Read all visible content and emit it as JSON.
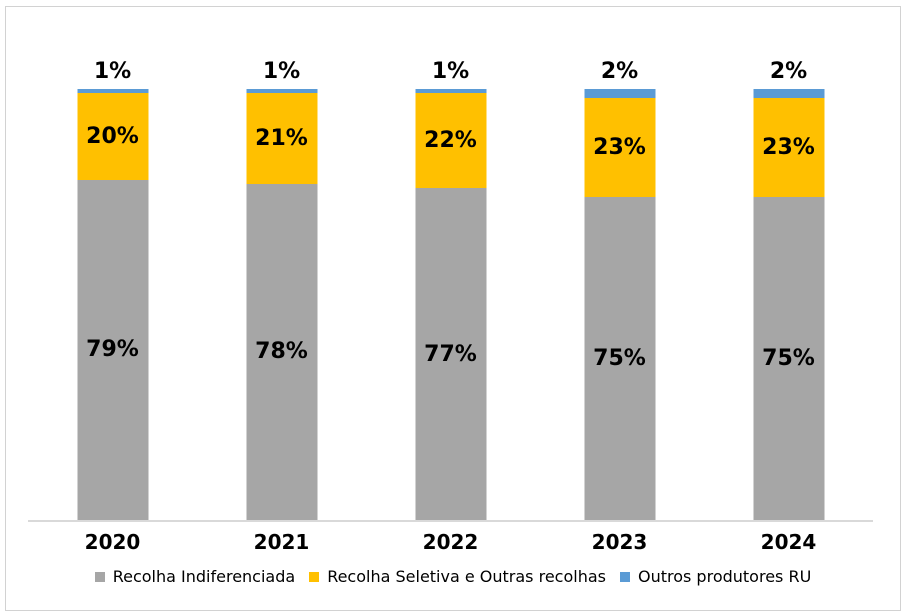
{
  "chart_data": {
    "type": "bar",
    "stacked": true,
    "title": "",
    "xlabel": "",
    "ylabel": "",
    "ylim": [
      0,
      100
    ],
    "grid": false,
    "legend_position": "bottom",
    "axis_line_color": "#d9d9d9",
    "categories": [
      "2020",
      "2021",
      "2022",
      "2023",
      "2024"
    ],
    "series": [
      {
        "name": "Recolha Indiferenciada",
        "color": "#a6a6a6",
        "values": [
          79,
          78,
          77,
          75,
          75
        ],
        "labels": [
          "79%",
          "78%",
          "77%",
          "75%",
          "75%"
        ],
        "label_position": "inside"
      },
      {
        "name": "Recolha Seletiva e Outras recolhas",
        "color": "#ffc000",
        "values": [
          20,
          21,
          22,
          23,
          23
        ],
        "labels": [
          "20%",
          "21%",
          "22%",
          "23%",
          "23%"
        ],
        "label_position": "inside"
      },
      {
        "name": "Outros produtores RU",
        "color": "#5b9bd5",
        "values": [
          1,
          1,
          1,
          2,
          2
        ],
        "labels": [
          "1%",
          "1%",
          "1%",
          "2%",
          "2%"
        ],
        "label_position": "outside"
      }
    ]
  }
}
